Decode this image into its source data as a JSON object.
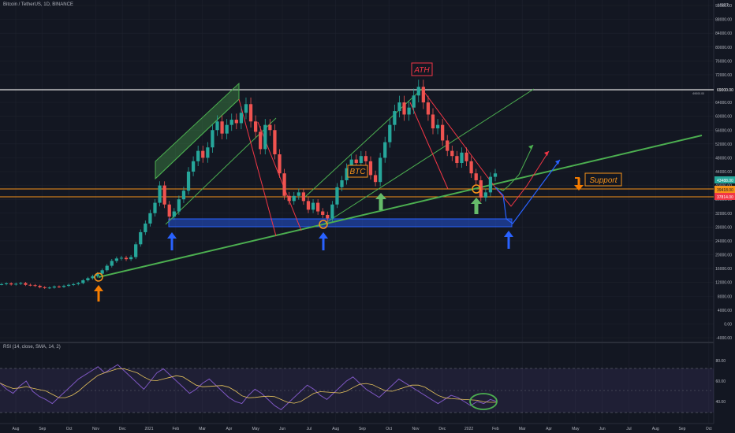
{
  "header": {
    "symbol_title": "Bitcoin / TetherUS, 1D, BINANCE",
    "currency": "USDT"
  },
  "rsi_header": "RSI (14, close, SMA, 14, 2)",
  "annotations": {
    "ath": "ATH",
    "btc": "BTC",
    "support": "Support"
  },
  "price_tags": {
    "ath_level": "69000.00",
    "ath_small": "69000.00",
    "current": "43488.00",
    "orange_level": "39418.00",
    "red_level": "37814.00"
  },
  "colors": {
    "background": "#131722",
    "candle_up": "#26a69a",
    "candle_down": "#ef5350",
    "trend_green": "#4caf50",
    "support_orange": "#f7931a",
    "box_blue": "#2962ff",
    "arrow_blue": "#2962ff",
    "arrow_orange": "#f57c00",
    "arrow_green": "#66bb6a",
    "ath_red": "#f23645",
    "rsi_line": "#7e57c2",
    "rsi_ma": "#e6c35c"
  },
  "chart_data": {
    "type": "line",
    "title": "",
    "y_axis_ticks": [
      "92000.00",
      "88000.00",
      "84000.00",
      "80000.00",
      "76000.00",
      "72000.00",
      "68000.00",
      "64000.00",
      "60000.00",
      "56000.00",
      "52000.00",
      "48000.00",
      "44000.00",
      "40000.00",
      "36000.00",
      "32000.00",
      "28000.00",
      "24000.00",
      "20000.00",
      "16000.00",
      "12000.00",
      "8000.00",
      "4000.00",
      "0.00",
      "-4000.00"
    ],
    "x_axis_ticks": [
      "Aug",
      "Sep",
      "Oct",
      "Nov",
      "Dec",
      "2021",
      "Feb",
      "Mar",
      "Apr",
      "May",
      "Jun",
      "Jul",
      "Aug",
      "Sep",
      "Oct",
      "Nov",
      "Dec",
      "2022",
      "Feb",
      "Mar",
      "Apr",
      "May",
      "Jun",
      "Jul",
      "Aug",
      "Sep",
      "Oct"
    ],
    "ylim": [
      -4000,
      92000
    ],
    "series": [
      {
        "values": [
          11500,
          11700,
          11400,
          11600,
          11800,
          11300,
          11200,
          11000,
          10600,
          10400,
          10500,
          10800,
          10700,
          11000,
          11300,
          11500,
          11800,
          12600,
          13200,
          13800,
          14500,
          15500,
          16800,
          18200,
          18900,
          19100,
          18700,
          19300,
          23000,
          26500,
          29000,
          32000,
          35000,
          40000,
          34500,
          31000,
          32500,
          36000,
          38500,
          44000,
          47000,
          50000,
          48000,
          51000,
          56000,
          58500,
          55000,
          57500,
          59000,
          58000,
          61000,
          63500,
          58500,
          55500,
          50500,
          57500,
          56000,
          49000,
          43500,
          37000,
          35500,
          37000,
          38000,
          35500,
          33000,
          35000,
          32500,
          31500,
          30500,
          34500,
          39500,
          41500,
          45000,
          47500,
          46500,
          48500,
          47000,
          43000,
          41000,
          48000,
          52500,
          57500,
          61500,
          64000,
          60500,
          62500,
          66000,
          68500,
          64000,
          60500,
          56500,
          57500,
          53000,
          50000,
          48500,
          46500,
          49500,
          47000,
          43500,
          41500,
          36500,
          38000,
          42500,
          43488
        ]
      }
    ],
    "rsi": {
      "y_ticks": [
        "80.00",
        "60.00",
        "40.00"
      ],
      "band_upper": 70,
      "band_lower": 30,
      "values": [
        58,
        52,
        48,
        55,
        60,
        50,
        45,
        42,
        38,
        44,
        50,
        56,
        62,
        66,
        70,
        74,
        68,
        72,
        76,
        70,
        64,
        58,
        52,
        60,
        68,
        72,
        66,
        60,
        54,
        48,
        52,
        58,
        62,
        56,
        50,
        44,
        40,
        38,
        46,
        52,
        48,
        42,
        36,
        32,
        38,
        44,
        50,
        56,
        52,
        46,
        42,
        48,
        54,
        60,
        64,
        58,
        52,
        48,
        44,
        50,
        56,
        62,
        58,
        54,
        50,
        46,
        42,
        38,
        42,
        46,
        44,
        40,
        36,
        40,
        38,
        42,
        40
      ]
    }
  }
}
